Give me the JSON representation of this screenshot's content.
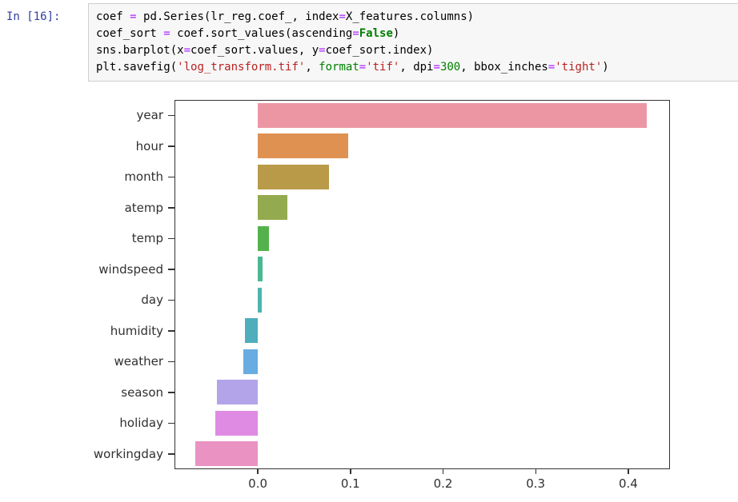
{
  "notebook": {
    "prompt": "In [16]:",
    "code_lines": [
      [
        {
          "t": "coef ",
          "c": "v"
        },
        {
          "t": "=",
          "c": "o"
        },
        {
          "t": " pd.Series(lr_reg.coef_, index",
          "c": "v"
        },
        {
          "t": "=",
          "c": "o"
        },
        {
          "t": "X_features.columns)",
          "c": "v"
        }
      ],
      [
        {
          "t": "coef_sort ",
          "c": "v"
        },
        {
          "t": "=",
          "c": "o"
        },
        {
          "t": " coef.sort_values(ascending",
          "c": "v"
        },
        {
          "t": "=",
          "c": "o"
        },
        {
          "t": "False",
          "c": "k"
        },
        {
          "t": ")",
          "c": "v"
        }
      ],
      [
        {
          "t": "sns.barplot(x",
          "c": "v"
        },
        {
          "t": "=",
          "c": "o"
        },
        {
          "t": "coef_sort.values, y",
          "c": "v"
        },
        {
          "t": "=",
          "c": "o"
        },
        {
          "t": "coef_sort.index)",
          "c": "v"
        }
      ],
      [
        {
          "t": "plt.savefig(",
          "c": "v"
        },
        {
          "t": "'log_transform.tif'",
          "c": "s"
        },
        {
          "t": ", ",
          "c": "v"
        },
        {
          "t": "format",
          "c": "b"
        },
        {
          "t": "=",
          "c": "o"
        },
        {
          "t": "'tif'",
          "c": "s"
        },
        {
          "t": ", dpi",
          "c": "v"
        },
        {
          "t": "=",
          "c": "o"
        },
        {
          "t": "300",
          "c": "n"
        },
        {
          "t": ", bbox_inches",
          "c": "v"
        },
        {
          "t": "=",
          "c": "o"
        },
        {
          "t": "'tight'",
          "c": "s"
        },
        {
          "t": ")",
          "c": "v"
        }
      ]
    ]
  },
  "chart_data": {
    "type": "bar",
    "orientation": "horizontal",
    "title": "",
    "xlabel": "",
    "ylabel": "",
    "categories": [
      "year",
      "hour",
      "month",
      "atemp",
      "temp",
      "windspeed",
      "day",
      "humidity",
      "weather",
      "season",
      "holiday",
      "workingday"
    ],
    "values": [
      0.42,
      0.098,
      0.077,
      0.032,
      0.012,
      0.005,
      0.004,
      -0.014,
      -0.016,
      -0.044,
      -0.046,
      -0.068
    ],
    "bar_colors": [
      "#ec96a4",
      "#df9152",
      "#b89a48",
      "#94aa4e",
      "#54b24c",
      "#4bb794",
      "#4eb4ad",
      "#4fadbe",
      "#68ace2",
      "#b3a3e9",
      "#df8be3",
      "#ea92c2"
    ],
    "xtick_values": [
      0.0,
      0.1,
      0.2,
      0.3,
      0.4
    ],
    "xtick_labels": [
      "0.0",
      "0.1",
      "0.2",
      "0.3",
      "0.4"
    ],
    "xlim": [
      -0.09,
      0.445
    ],
    "grid": false,
    "legend": "none",
    "spine_color": "#333333"
  }
}
